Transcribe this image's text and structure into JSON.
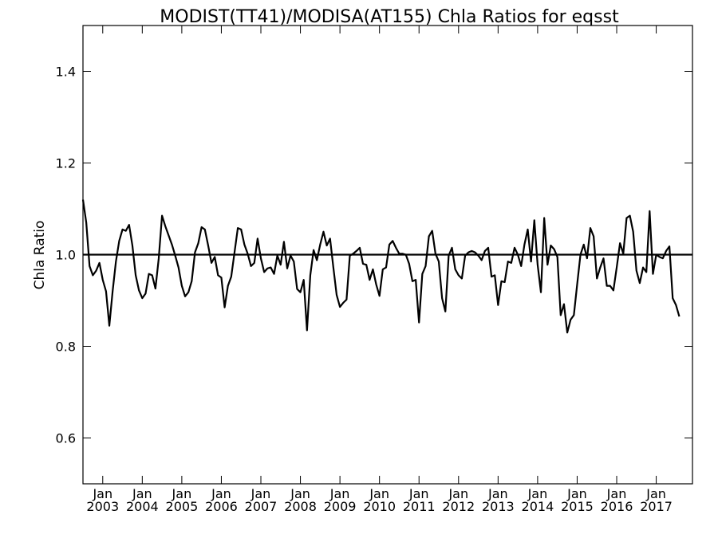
{
  "chart_data": {
    "type": "line",
    "title": "MODIST(TT41)/MODISA(AT155)  Chla Ratios for eqsst",
    "xlabel": "",
    "ylabel": "Chla Ratio",
    "ylim": [
      0.5,
      1.5
    ],
    "y_ticks": [
      "0.6",
      "0.8",
      "1.0",
      "1.2",
      "1.4"
    ],
    "x_tick_month": "Jan",
    "x_tick_years": [
      "2003",
      "2004",
      "2005",
      "2006",
      "2007",
      "2008",
      "2009",
      "2010",
      "2011",
      "2012",
      "2013",
      "2014",
      "2015",
      "2016",
      "2017"
    ],
    "reference_line": 1.0,
    "x_range": [
      "2002-07",
      "2017-12"
    ],
    "grid": false,
    "series": [
      {
        "start": "2002-07",
        "values": [
          1.12,
          1.07,
          0.975,
          0.955,
          0.965,
          0.982,
          0.945,
          0.92,
          0.845,
          0.92,
          0.985,
          1.03,
          1.055,
          1.052,
          1.065,
          1.02,
          0.955,
          0.922,
          0.905,
          0.915,
          0.958,
          0.955,
          0.926,
          0.992,
          1.085,
          1.062,
          1.042,
          1.022,
          0.998,
          0.972,
          0.932,
          0.909,
          0.918,
          0.942,
          1.005,
          1.025,
          1.06,
          1.055,
          1.02,
          0.982,
          0.995,
          0.955,
          0.95,
          0.885,
          0.932,
          0.952,
          1.005,
          1.058,
          1.055,
          1.022,
          1.002,
          0.975,
          0.982,
          1.035,
          0.992,
          0.962,
          0.97,
          0.972,
          0.958,
          0.998,
          0.978,
          1.028,
          0.97,
          0.998,
          0.985,
          0.925,
          0.918,
          0.945,
          0.835,
          0.955,
          1.01,
          0.988,
          1.022,
          1.05,
          1.02,
          1.035,
          0.972,
          0.912,
          0.886,
          0.895,
          0.902,
          0.998,
          1.002,
          1.008,
          1.015,
          0.98,
          0.978,
          0.945,
          0.968,
          0.935,
          0.91,
          0.968,
          0.972,
          1.022,
          1.03,
          1.015,
          1.002,
          1.002,
          1.0,
          0.98,
          0.942,
          0.945,
          0.852,
          0.958,
          0.975,
          1.04,
          1.052,
          1.002,
          0.985,
          0.905,
          0.876,
          0.998,
          1.015,
          0.968,
          0.955,
          0.948,
          0.998,
          1.005,
          1.008,
          1.005,
          0.998,
          0.988,
          1.008,
          1.015,
          0.952,
          0.955,
          0.89,
          0.942,
          0.94,
          0.985,
          0.982,
          1.015,
          1.0,
          0.975,
          1.022,
          1.055,
          0.985,
          1.075,
          0.978,
          0.918,
          1.08,
          0.978,
          1.02,
          1.012,
          0.995,
          0.868,
          0.892,
          0.83,
          0.858,
          0.868,
          0.935,
          1.0,
          1.022,
          0.992,
          1.058,
          1.04,
          0.948,
          0.972,
          0.992,
          0.932,
          0.932,
          0.922,
          0.972,
          1.025,
          1.002,
          1.08,
          1.085,
          1.05,
          0.965,
          0.938,
          0.972,
          0.962,
          1.095,
          0.958,
          1.0,
          0.995,
          0.992,
          1.008,
          1.018,
          0.905,
          0.89,
          0.865
        ]
      }
    ]
  }
}
